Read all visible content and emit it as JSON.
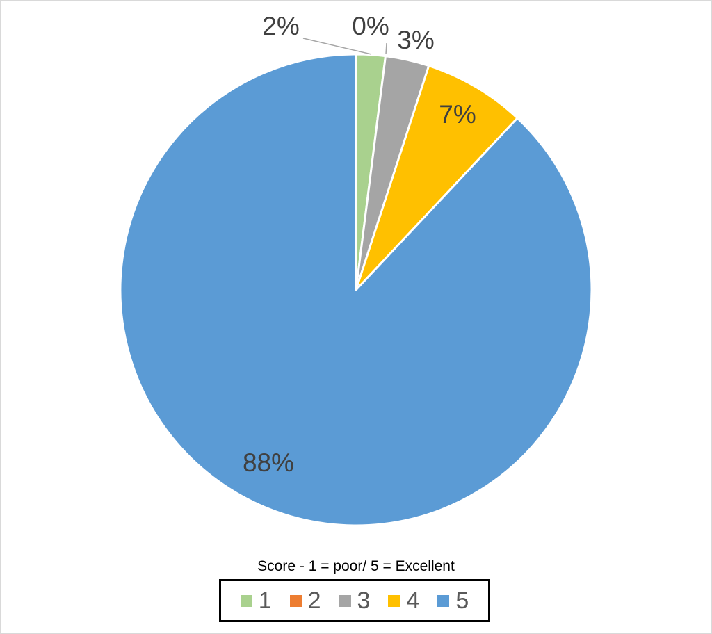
{
  "chart_data": {
    "type": "pie",
    "title": "",
    "categories": [
      "1",
      "2",
      "3",
      "4",
      "5"
    ],
    "values": [
      2,
      0,
      3,
      7,
      88
    ],
    "data_labels": [
      "2%",
      "0%",
      "3%",
      "7%",
      "88%"
    ],
    "colors": [
      "#a9d18e",
      "#ed7d31",
      "#a5a5a5",
      "#ffc000",
      "#5b9bd5"
    ],
    "legend": {
      "caption": "Score - 1 = poor/ 5 = Excellent",
      "placement": "bottom"
    }
  }
}
